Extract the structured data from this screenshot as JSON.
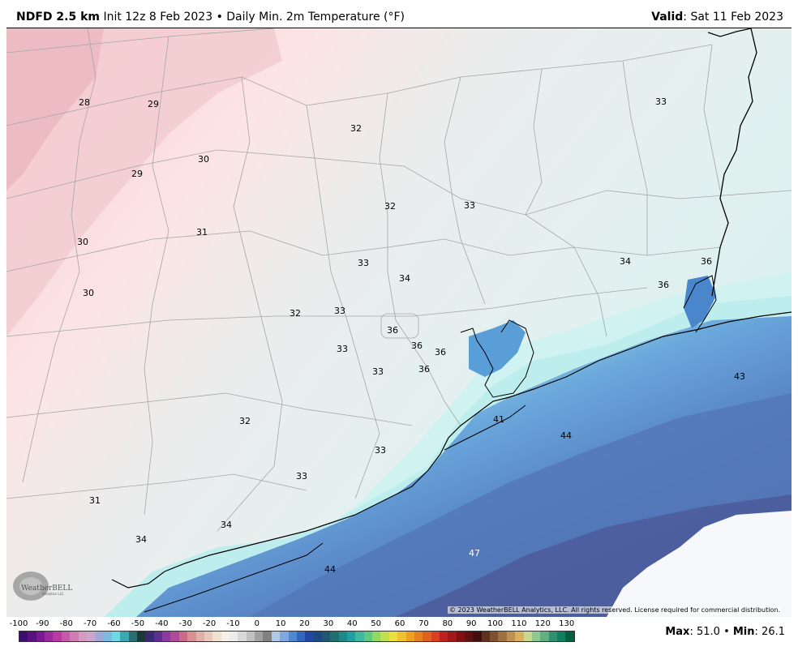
{
  "header": {
    "model": "NDFD 2.5 km",
    "init": "Init 12z 8 Feb 2023",
    "separator": "•",
    "product": "Daily Min. 2m Temperature (°F)",
    "valid_label": "Valid",
    "valid_value": ": Sat 11 Feb 2023"
  },
  "map": {
    "labels": [
      {
        "text": "28",
        "white": false
      },
      {
        "text": "29",
        "white": false
      },
      {
        "text": "32",
        "white": false
      },
      {
        "text": "33",
        "white": false
      },
      {
        "text": "30",
        "white": false
      },
      {
        "text": "29",
        "white": false
      },
      {
        "text": "32",
        "white": false
      },
      {
        "text": "33",
        "white": false
      },
      {
        "text": "31",
        "white": false
      },
      {
        "text": "30",
        "white": false
      },
      {
        "text": "33",
        "white": false
      },
      {
        "text": "34",
        "white": false
      },
      {
        "text": "34",
        "white": false
      },
      {
        "text": "36",
        "white": false
      },
      {
        "text": "36",
        "white": false
      },
      {
        "text": "30",
        "white": false
      },
      {
        "text": "32",
        "white": false
      },
      {
        "text": "33",
        "white": false
      },
      {
        "text": "36",
        "white": false
      },
      {
        "text": "36",
        "white": false
      },
      {
        "text": "36",
        "white": false
      },
      {
        "text": "33",
        "white": false
      },
      {
        "text": "33",
        "white": false
      },
      {
        "text": "36",
        "white": false
      },
      {
        "text": "43",
        "white": false
      },
      {
        "text": "41",
        "white": false
      },
      {
        "text": "32",
        "white": false
      },
      {
        "text": "44",
        "white": false
      },
      {
        "text": "33",
        "white": false
      },
      {
        "text": "33",
        "white": false
      },
      {
        "text": "31",
        "white": false
      },
      {
        "text": "34",
        "white": false
      },
      {
        "text": "34",
        "white": false
      },
      {
        "text": "47",
        "white": true
      },
      {
        "text": "44",
        "white": false
      }
    ],
    "copyright": "© 2023 WeatherBELL Analytics, LLC. All rights reserved. License required for commercial distribution.",
    "logo_text": "WeatherBELL",
    "logo_subtext": "Analytics LLC"
  },
  "scale": {
    "ticks": [
      "-100",
      "-90",
      "-80",
      "-70",
      "-60",
      "-50",
      "-40",
      "-30",
      "-20",
      "-10",
      "0",
      "10",
      "20",
      "30",
      "40",
      "50",
      "60",
      "70",
      "80",
      "90",
      "100",
      "110",
      "120",
      "130"
    ],
    "colors": [
      "#3b0f6e",
      "#5a1080",
      "#7a1a90",
      "#9b2a9b",
      "#b83aa3",
      "#c75aa8",
      "#cf7cb3",
      "#d59ac0",
      "#caa6cc",
      "#9fa8d8",
      "#7fb8e0",
      "#6fd8e8",
      "#3aa8b0",
      "#2a7070",
      "#1a3a3a",
      "#3a2a70",
      "#5a3090",
      "#8a3aa0",
      "#b04a9a",
      "#c86a8a",
      "#d89090",
      "#e0b0a8",
      "#e8c8b8",
      "#f0e0d0",
      "#f8f0e8",
      "#ececec",
      "#d8d8d8",
      "#c0c0c0",
      "#a0a0a0",
      "#808080",
      "#b0c8e8",
      "#80a8e0",
      "#5088d0",
      "#3068c0",
      "#2048a0",
      "#204880",
      "#205870",
      "#207070",
      "#208888",
      "#20a0a0",
      "#40b8a0",
      "#60c880",
      "#90d860",
      "#c0e050",
      "#e8e040",
      "#f0c030",
      "#f0a020",
      "#e88020",
      "#e06020",
      "#d84020",
      "#c02020",
      "#a01818",
      "#801010",
      "#601010",
      "#401010",
      "#603020",
      "#805030",
      "#a07040",
      "#c09050",
      "#d8b060",
      "#c8d890",
      "#90c890",
      "#60b080",
      "#309070",
      "#108060",
      "#006040"
    ],
    "max_label": "Max",
    "max_value": ": 51.0",
    "separator": "•",
    "min_label": "Min",
    "min_value": ": 26.1"
  }
}
